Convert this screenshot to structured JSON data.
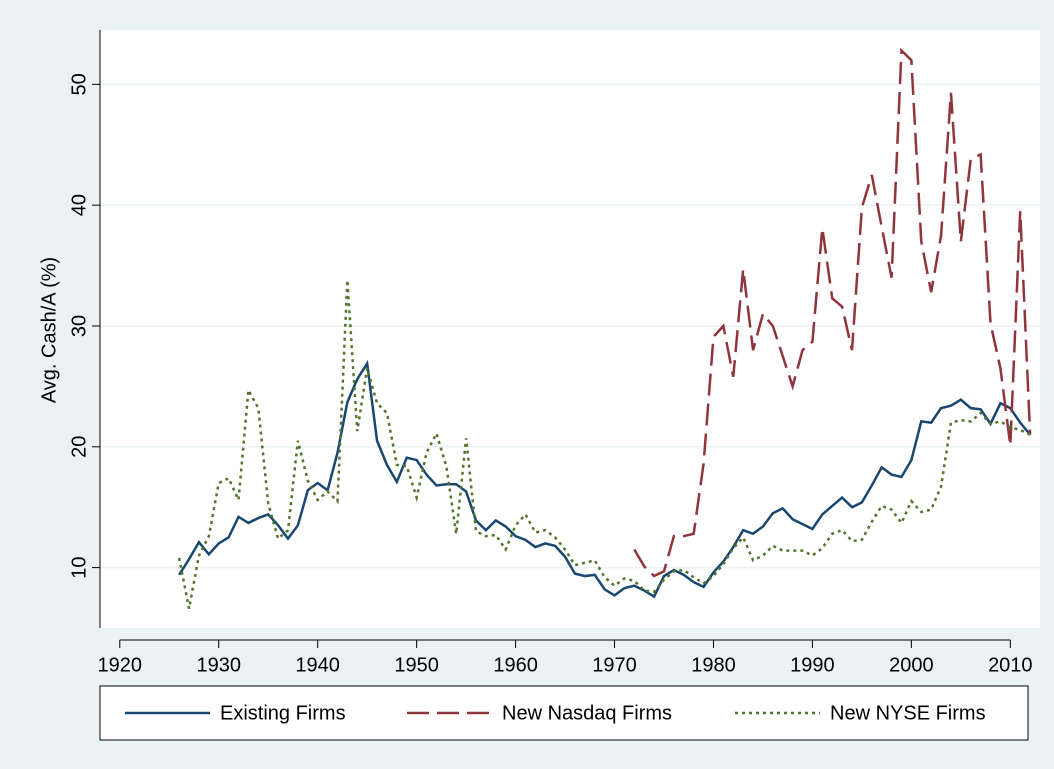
{
  "chart_data": {
    "type": "line",
    "ylabel": "Avg. Cash/A (%)",
    "x": [
      1926,
      1927,
      1928,
      1929,
      1930,
      1931,
      1932,
      1933,
      1934,
      1935,
      1936,
      1937,
      1938,
      1939,
      1940,
      1941,
      1942,
      1943,
      1944,
      1945,
      1946,
      1947,
      1948,
      1949,
      1950,
      1951,
      1952,
      1953,
      1954,
      1955,
      1956,
      1957,
      1958,
      1959,
      1960,
      1961,
      1962,
      1963,
      1964,
      1965,
      1966,
      1967,
      1968,
      1969,
      1970,
      1971,
      1972,
      1973,
      1974,
      1975,
      1976,
      1977,
      1978,
      1979,
      1980,
      1981,
      1982,
      1983,
      1984,
      1985,
      1986,
      1987,
      1988,
      1989,
      1990,
      1991,
      1992,
      1993,
      1994,
      1995,
      1996,
      1997,
      1998,
      1999,
      2000,
      2001,
      2002,
      2003,
      2004,
      2005,
      2006,
      2007,
      2008,
      2009,
      2010,
      2011,
      2012
    ],
    "series": [
      {
        "name": "Existing Firms",
        "color": "#1a476f",
        "style": "solid",
        "values": [
          9.4,
          10.7,
          12.1,
          11.1,
          12,
          12.5,
          14.2,
          13.7,
          14.1,
          14.4,
          13.5,
          12.4,
          13.5,
          16.4,
          17,
          16.4,
          19.5,
          23.7,
          25.6,
          26.9,
          20.5,
          18.5,
          17.1,
          19.1,
          18.9,
          17.7,
          16.8,
          16.9,
          16.9,
          16.3,
          13.9,
          13.1,
          13.9,
          13.4,
          12.6,
          12.3,
          11.7,
          12,
          11.8,
          10.9,
          9.5,
          9.3,
          9.4,
          8.2,
          7.7,
          8.3,
          8.5,
          8.1,
          7.6,
          9.3,
          9.8,
          9.4,
          8.8,
          8.4,
          9.6,
          10.5,
          11.7,
          13.1,
          12.8,
          13.4,
          14.5,
          14.9,
          14,
          13.6,
          13.2,
          14.4,
          15.1,
          15.8,
          15,
          15.4,
          16.8,
          18.3,
          17.7,
          17.5,
          18.9,
          22.1,
          22,
          23.2,
          23.4,
          23.9,
          23.2,
          23.1,
          21.9,
          23.6,
          23.2,
          22,
          21
        ]
      },
      {
        "name": "New Nasdaq Firms",
        "color": "#90353b",
        "style": "dash",
        "values": [
          null,
          null,
          null,
          null,
          null,
          null,
          null,
          null,
          null,
          null,
          null,
          null,
          null,
          null,
          null,
          null,
          null,
          null,
          null,
          null,
          null,
          null,
          null,
          null,
          null,
          null,
          null,
          null,
          null,
          null,
          null,
          null,
          null,
          null,
          null,
          null,
          null,
          null,
          null,
          null,
          null,
          null,
          null,
          null,
          null,
          null,
          11.5,
          10.1,
          9.3,
          9.7,
          12.6,
          12.6,
          12.8,
          18.6,
          29.1,
          30,
          25.8,
          34.7,
          28,
          31,
          30,
          27.5,
          25,
          28,
          28.7,
          38.1,
          32.3,
          31.6,
          28,
          39.8,
          42.5,
          38.2,
          34,
          52.8,
          52,
          37,
          32.8,
          37.5,
          49.3,
          37,
          43.8,
          44.2,
          30.2,
          26.5,
          20.1,
          39.5,
          21
        ]
      },
      {
        "name": "New NYSE Firms",
        "color": "#55752f",
        "style": "dot",
        "values": [
          10.8,
          6.6,
          11,
          12.6,
          17,
          17.4,
          15.6,
          24.7,
          23.2,
          15.3,
          12.4,
          13.1,
          20.5,
          17.2,
          15.6,
          16.3,
          15.5,
          33.8,
          21.3,
          26.5,
          23.6,
          22.8,
          18.5,
          18.4,
          15.8,
          19.5,
          21.1,
          18.4,
          12.8,
          20.7,
          13,
          12.6,
          12.7,
          11.5,
          13.5,
          14.4,
          12.9,
          13.1,
          12.5,
          11.5,
          10.2,
          10.4,
          10.6,
          9.2,
          8.5,
          9.1,
          8.9,
          8.1,
          8,
          9,
          9.7,
          9.8,
          9.2,
          8.7,
          9.3,
          10.3,
          11.6,
          12.5,
          10.6,
          11,
          11.8,
          11.4,
          11.4,
          11.4,
          11,
          11.6,
          12.8,
          13.1,
          12.2,
          12.3,
          13.8,
          15.1,
          14.8,
          13.7,
          15.5,
          14.6,
          14.8,
          16.7,
          22,
          22.2,
          22.1,
          22.8,
          21.9,
          22.1,
          21.6,
          21.4,
          21
        ]
      }
    ],
    "xlim": [
      1918,
      2013
    ],
    "ylim": [
      5,
      54.5
    ],
    "xticks": [
      1920,
      1930,
      1940,
      1950,
      1960,
      1970,
      1980,
      1990,
      2000,
      2010
    ],
    "yticks": [
      10,
      20,
      30,
      40,
      50
    ],
    "grid": true,
    "legend": "bottom"
  }
}
